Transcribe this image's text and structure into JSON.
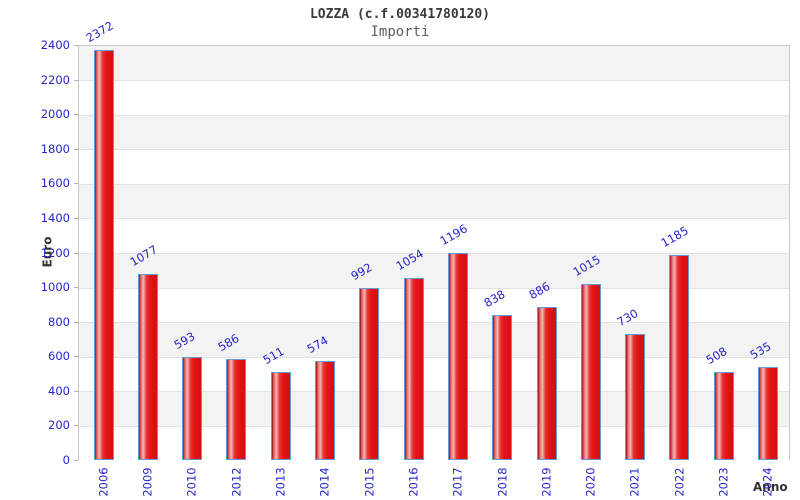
{
  "header": {
    "title": "LOZZA (c.f.00341780120)",
    "subtitle": "Importi"
  },
  "chart_data": {
    "type": "bar",
    "title": "LOZZA (c.f.00341780120)",
    "subtitle": "Importi",
    "xlabel": "Anno",
    "ylabel": "Euro",
    "categories": [
      "2006",
      "2009",
      "2010",
      "2012",
      "2013",
      "2014",
      "2015",
      "2016",
      "2017",
      "2018",
      "2019",
      "2020",
      "2021",
      "2022",
      "2023",
      "2024"
    ],
    "values": [
      2372,
      1077,
      593,
      586,
      511,
      574,
      992,
      1054,
      1196,
      838,
      886,
      1015,
      730,
      1185,
      508,
      535
    ],
    "ylim": [
      0,
      2400
    ],
    "ytick_step": 200,
    "grid": true,
    "legend_position": "none",
    "colors": {
      "tick_label": "#2525cc",
      "value_label": "#2525cc",
      "bar_border": "#5f9dd8",
      "bar_gradient": [
        "#a31212",
        "#e06868",
        "#f4b6b6",
        "#e63333",
        "#e31515",
        "#d21010"
      ],
      "band_gray": "#f3f3f3",
      "band_white": "#ffffff",
      "gridline": "#e2e2e2",
      "plot_border": "#c9c9c9",
      "tick_mark": "#b5b5b5",
      "title_color": "#3a3a3a",
      "subtitle_color": "#616161",
      "axis_title_color": "#333333"
    }
  }
}
